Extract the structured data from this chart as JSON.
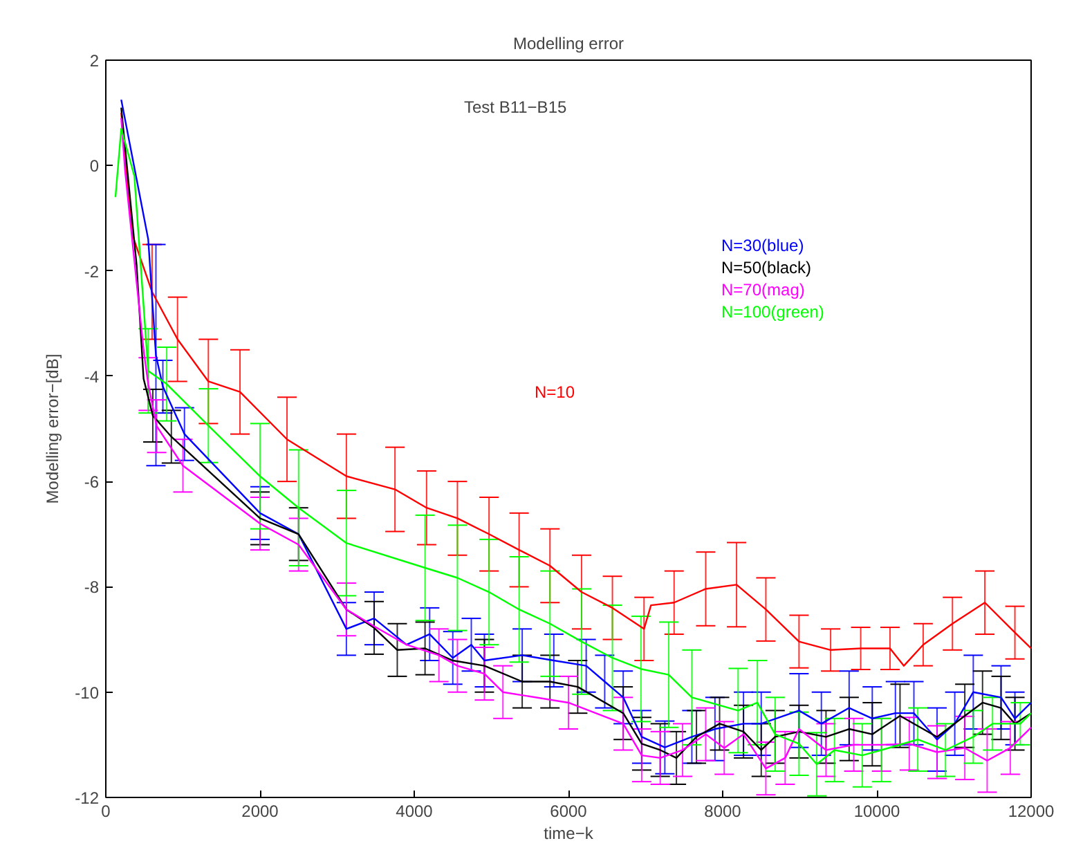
{
  "chart_data": {
    "type": "line",
    "title": "Modelling error",
    "xlabel": "time−k",
    "ylabel": "Modelling error−[dB]",
    "annotations": [
      "Test B11−B15"
    ],
    "xlim": [
      0,
      12000
    ],
    "ylim": [
      -12,
      2
    ],
    "xticks": [
      0,
      2000,
      4000,
      6000,
      8000,
      10000,
      12000
    ],
    "yticks": [
      -12,
      -10,
      -8,
      -6,
      -4,
      -2,
      0,
      2
    ],
    "grid": false,
    "marker": "none",
    "line_style": "solid",
    "series": [
      {
        "name": "N=10",
        "color": "#ff0000",
        "x": [
          200,
          340,
          600,
          930,
          1330,
          1740,
          2350,
          3120,
          3750,
          4160,
          4560,
          4970,
          5360,
          5760,
          6170,
          6570,
          6980,
          7070,
          7370,
          7780,
          8180,
          8560,
          8990,
          9400,
          9790,
          10170,
          10350,
          10600,
          10980,
          11400,
          11790,
          12000
        ],
        "values": [
          1.0,
          -1.3,
          -2.4,
          -3.3,
          -4.1,
          -4.3,
          -5.2,
          -5.9,
          -6.15,
          -6.5,
          -6.7,
          -7.0,
          -7.3,
          -7.6,
          -8.1,
          -8.4,
          -8.8,
          -8.35,
          -8.3,
          -8.04,
          -7.96,
          -8.43,
          -9.04,
          -9.2,
          -9.17,
          -9.17,
          -9.5,
          -9.1,
          -8.7,
          -8.3,
          -8.87,
          -9.17
        ],
        "errors": [
          null,
          null,
          0.9,
          0.8,
          0.8,
          0.8,
          0.8,
          0.8,
          0.8,
          0.7,
          0.7,
          0.7,
          0.7,
          0.7,
          0.7,
          0.6,
          0.6,
          null,
          0.6,
          0.7,
          0.8,
          0.6,
          0.5,
          0.4,
          0.4,
          0.4,
          null,
          0.4,
          0.5,
          0.6,
          0.5,
          null
        ]
      },
      {
        "name": "N=30(blue)",
        "color": "#0000ff",
        "x": [
          200,
          550,
          650,
          740,
          1020,
          2000,
          2500,
          3120,
          3480,
          3900,
          4200,
          4500,
          4740,
          4910,
          5400,
          5810,
          6230,
          6470,
          6710,
          6950,
          7250,
          7600,
          7900,
          8270,
          8500,
          8990,
          9280,
          9640,
          9940,
          10240,
          10480,
          10780,
          11010,
          11250,
          11610,
          11790,
          12000
        ],
        "values": [
          1.25,
          -1.4,
          -3.6,
          -4.2,
          -5.1,
          -6.6,
          -7.0,
          -8.8,
          -8.6,
          -9.1,
          -8.9,
          -9.35,
          -9.1,
          -9.4,
          -9.3,
          -9.4,
          -9.5,
          -9.8,
          -10.1,
          -10.85,
          -11.05,
          -10.85,
          -10.7,
          -10.6,
          -10.6,
          -10.35,
          -10.6,
          -10.3,
          -10.5,
          -10.4,
          -10.4,
          -10.9,
          -10.6,
          -10.0,
          -10.1,
          -10.5,
          -10.2
        ],
        "errors": [
          null,
          null,
          2.1,
          0.5,
          0.5,
          0.5,
          null,
          0.5,
          0.5,
          null,
          0.5,
          0.5,
          0.5,
          0.5,
          0.5,
          0.5,
          0.5,
          0.5,
          0.5,
          0.5,
          0.5,
          0.5,
          0.6,
          0.6,
          0.6,
          0.7,
          0.6,
          0.7,
          0.6,
          0.6,
          0.6,
          0.6,
          0.6,
          0.7,
          0.6,
          0.5,
          null
        ]
      },
      {
        "name": "N=50(black)",
        "color": "#000000",
        "x": [
          200,
          400,
          490,
          610,
          850,
          2000,
          2500,
          3120,
          3480,
          3780,
          4140,
          4500,
          4910,
          5400,
          5760,
          6120,
          6710,
          6950,
          7190,
          7400,
          7660,
          7960,
          8270,
          8500,
          8680,
          8990,
          9340,
          9640,
          9940,
          10300,
          10780,
          11140,
          11370,
          11610,
          11790,
          12000
        ],
        "values": [
          1.1,
          -1.9,
          -4.05,
          -4.75,
          -5.15,
          -6.7,
          -7.0,
          -8.43,
          -8.78,
          -9.2,
          -9.17,
          -9.4,
          -9.5,
          -9.8,
          -9.8,
          -9.9,
          -10.4,
          -10.98,
          -11.1,
          -11.25,
          -10.85,
          -10.6,
          -10.75,
          -11.1,
          -10.85,
          -10.75,
          -10.85,
          -10.7,
          -10.8,
          -10.45,
          -10.85,
          -10.45,
          -10.2,
          -10.3,
          -10.6,
          -10.4
        ],
        "errors": [
          null,
          null,
          null,
          0.5,
          0.5,
          0.5,
          0.5,
          null,
          0.5,
          0.5,
          0.5,
          null,
          0.5,
          0.5,
          0.5,
          0.5,
          0.5,
          0.5,
          0.5,
          0.5,
          0.5,
          0.5,
          0.5,
          0.5,
          0.5,
          0.5,
          0.5,
          0.6,
          0.6,
          0.6,
          null,
          0.6,
          0.6,
          0.6,
          0.5,
          null
        ]
      },
      {
        "name": "N=70(mag)",
        "color": "#ff00ff",
        "x": [
          200,
          250,
          490,
          550,
          660,
          1000,
          2000,
          2500,
          3120,
          3480,
          3900,
          4320,
          4560,
          4910,
          5150,
          6000,
          6710,
          6950,
          7190,
          7480,
          7780,
          8020,
          8270,
          8560,
          8810,
          8990,
          9340,
          9700,
          10060,
          10420,
          10780,
          11140,
          11430,
          11730,
          12000
        ],
        "values": [
          0.9,
          -0.1,
          -3.5,
          -4.15,
          -4.95,
          -5.7,
          -6.8,
          -7.2,
          -8.43,
          -8.75,
          -9.1,
          -9.3,
          -9.5,
          -9.65,
          -10.0,
          -10.2,
          -10.6,
          -11.2,
          -11.25,
          -11.1,
          -10.8,
          -11.06,
          -10.8,
          -11.45,
          -11.25,
          -10.7,
          -11.1,
          -11.0,
          -11.0,
          -10.98,
          -11.14,
          -11.06,
          -11.3,
          -11.06,
          -10.67
        ],
        "errors": [
          null,
          null,
          null,
          0.5,
          0.5,
          0.5,
          0.5,
          0.5,
          0.5,
          null,
          null,
          0.5,
          0.5,
          0.5,
          0.5,
          0.5,
          0.5,
          0.5,
          0.5,
          0.5,
          0.5,
          0.5,
          null,
          0.5,
          0.5,
          null,
          0.5,
          0.5,
          0.5,
          0.5,
          0.5,
          0.6,
          0.6,
          0.5,
          null
        ]
      },
      {
        "name": "N=100(green)",
        "color": "#00ff00",
        "x": [
          125,
          200,
          370,
          550,
          790,
          1330,
          2000,
          2500,
          3120,
          4140,
          4560,
          4970,
          5360,
          5760,
          6170,
          6570,
          6940,
          7300,
          7600,
          8200,
          8450,
          8680,
          8990,
          9220,
          9450,
          9810,
          10060,
          10530,
          10890,
          11250,
          11500,
          11860,
          12000
        ],
        "values": [
          -0.6,
          0.7,
          -0.2,
          -3.9,
          -4.15,
          -4.94,
          -5.9,
          -6.5,
          -7.17,
          -7.64,
          -7.83,
          -8.1,
          -8.43,
          -8.7,
          -9.04,
          -9.35,
          -9.56,
          -9.67,
          -10.1,
          -10.35,
          -10.2,
          -10.8,
          -10.98,
          -11.37,
          -11.1,
          -11.2,
          -11.1,
          -10.9,
          -11.1,
          -10.85,
          -10.6,
          -10.6,
          -10.4
        ],
        "errors": [
          null,
          null,
          null,
          0.8,
          0.7,
          0.7,
          1.0,
          1.1,
          1.0,
          1.0,
          1.0,
          1.0,
          1.0,
          1.0,
          1.0,
          1.0,
          1.0,
          1.0,
          0.9,
          0.8,
          0.8,
          0.7,
          0.6,
          0.6,
          0.6,
          0.6,
          0.6,
          0.6,
          0.5,
          0.5,
          0.5,
          0.4,
          null
        ]
      }
    ]
  }
}
